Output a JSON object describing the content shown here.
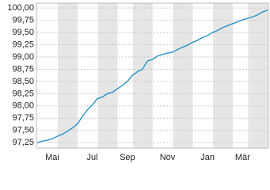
{
  "chart_data": {
    "type": "line",
    "categories": [
      null,
      null,
      null,
      "Mai",
      null,
      null,
      null,
      null,
      null,
      null,
      null,
      "Jul",
      null,
      null,
      null,
      null,
      null,
      null,
      "Sep",
      null,
      null,
      null,
      null,
      null,
      null,
      null,
      "Nov",
      null,
      null,
      null,
      null,
      null,
      null,
      null,
      "Jan",
      null,
      null,
      null,
      null,
      null,
      null,
      "Mär",
      null,
      null,
      null,
      null,
      null
    ],
    "series": [
      {
        "color": "#1a8cc8",
        "values": [
          97.25,
          97.28,
          97.3,
          97.33,
          97.38,
          97.42,
          97.48,
          97.55,
          97.63,
          97.78,
          97.92,
          98.02,
          98.15,
          98.18,
          98.25,
          98.28,
          98.35,
          98.42,
          98.5,
          98.62,
          98.7,
          98.75,
          98.92,
          98.95,
          99.02,
          99.05,
          99.08,
          99.1,
          99.15,
          99.2,
          99.24,
          99.3,
          99.34,
          99.4,
          99.44,
          99.5,
          99.54,
          99.6,
          99.64,
          99.68,
          99.72,
          99.76,
          99.79,
          99.82,
          99.86,
          99.92,
          99.96
        ]
      }
    ],
    "ylim": [
      97.14,
      100.1
    ],
    "yticks": [
      {
        "value": 97.25,
        "label": "97,25"
      },
      {
        "value": 97.5,
        "label": "97,50"
      },
      {
        "value": 97.75,
        "label": "97,75"
      },
      {
        "value": 98,
        "label": "98,00"
      },
      {
        "value": 98.25,
        "label": "98,25"
      },
      {
        "value": 98.5,
        "label": "98,50"
      },
      {
        "value": 98.75,
        "label": "98,75"
      },
      {
        "value": 99,
        "label": "99,00"
      },
      {
        "value": 99.25,
        "label": "99,25"
      },
      {
        "value": 99.5,
        "label": "99,50"
      },
      {
        "value": 99.75,
        "label": "99,75"
      },
      {
        "value": 100,
        "label": "100,00"
      }
    ],
    "grid": true
  }
}
